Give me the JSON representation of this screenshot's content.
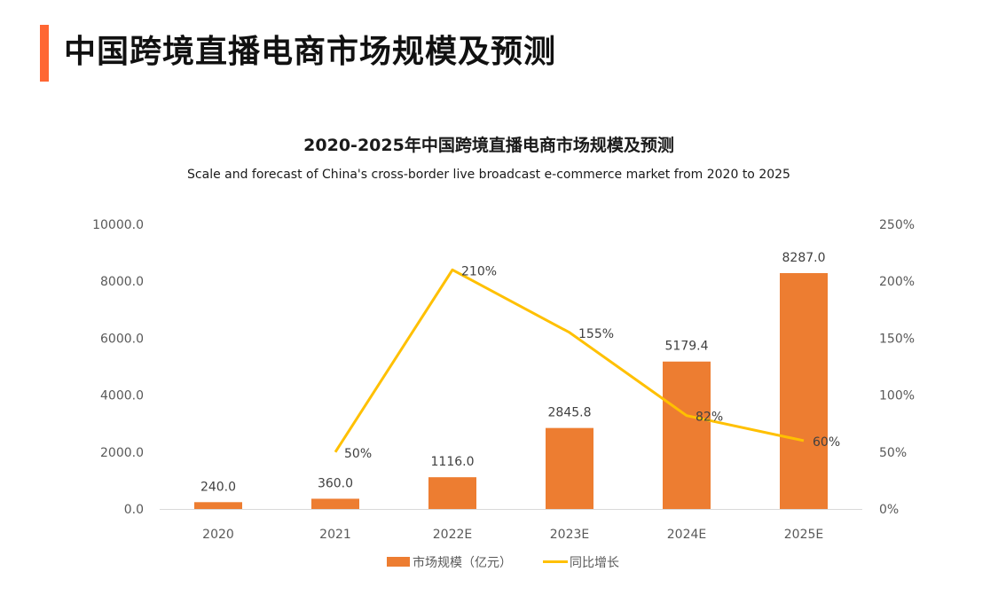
{
  "page": {
    "title": "中国跨境直播电商市场规模及预测",
    "accent_color": "#FF6633"
  },
  "chart_data": {
    "type": "bar",
    "title": "2020-2025年中国跨境直播电商市场规模及预测",
    "subtitle": "Scale and forecast of China's cross-border live broadcast e-commerce market from 2020 to 2025",
    "categories": [
      "2020",
      "2021",
      "2022E",
      "2023E",
      "2024E",
      "2025E"
    ],
    "series": [
      {
        "name": "市场规模（亿元）",
        "type": "bar",
        "axis": "left",
        "color": "#ED7D31",
        "values": [
          240.0,
          360.0,
          1116.0,
          2845.8,
          5179.4,
          8287.0
        ],
        "labels": [
          "240.0",
          "360.0",
          "1116.0",
          "2845.8",
          "5179.4",
          "8287.0"
        ]
      },
      {
        "name": "同比增长",
        "type": "line",
        "axis": "right",
        "color": "#FFC000",
        "values": [
          null,
          50,
          210,
          155,
          82,
          60
        ],
        "labels": [
          "",
          "50%",
          "210%",
          "155%",
          "82%",
          "60%"
        ]
      }
    ],
    "y_left": {
      "ylim": [
        0,
        10000
      ],
      "ticks": [
        "0.0",
        "2000.0",
        "4000.0",
        "6000.0",
        "8000.0",
        "10000.0"
      ],
      "tick_values": [
        0,
        2000,
        4000,
        6000,
        8000,
        10000
      ]
    },
    "y_right": {
      "ylim": [
        0,
        250
      ],
      "ticks": [
        "0%",
        "50%",
        "100%",
        "150%",
        "200%",
        "250%"
      ],
      "tick_values": [
        0,
        50,
        100,
        150,
        200,
        250
      ]
    },
    "xlabel": "",
    "ylabel": "",
    "grid": false,
    "legend": {
      "placement": "bottom-center",
      "items": [
        {
          "label": "市场规模（亿元）",
          "kind": "bar",
          "color": "#ED7D31"
        },
        {
          "label": "同比增长",
          "kind": "line",
          "color": "#FFC000"
        }
      ]
    }
  }
}
